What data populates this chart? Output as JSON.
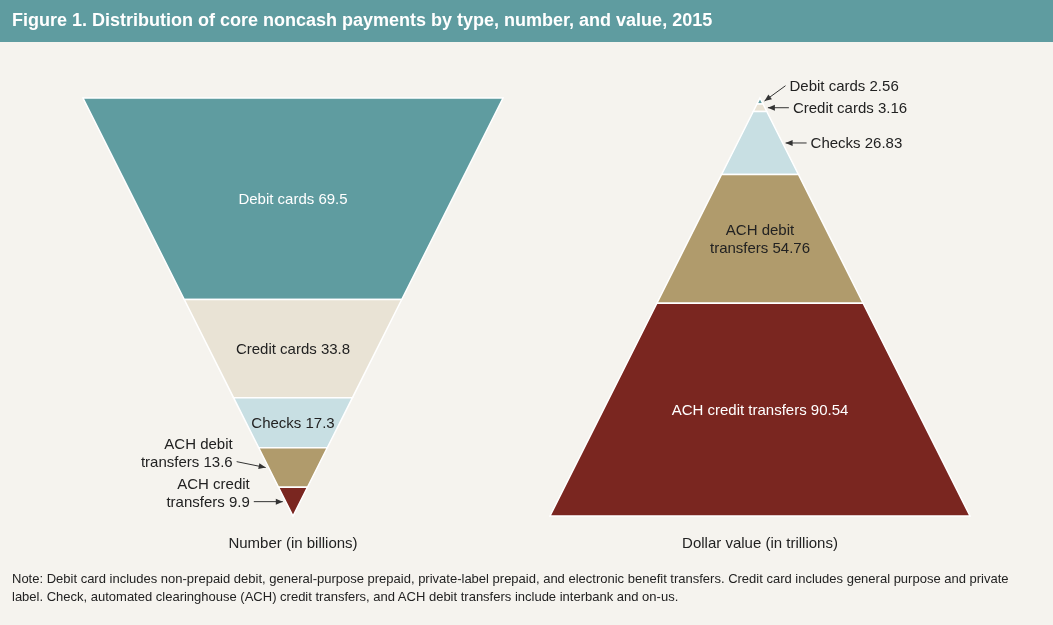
{
  "chart_data": [
    {
      "type": "other",
      "title": "Figure 1. Distribution of core noncash payments by type, number, and value, 2015",
      "xlabel": "Number (in billions)",
      "categories": [
        "Debit cards",
        "Credit cards",
        "Checks",
        "ACH debit transfers",
        "ACH credit transfers"
      ],
      "values": [
        69.5,
        33.8,
        17.3,
        13.6,
        9.9
      ],
      "colors": [
        "#5f9ca0",
        "#e9e3d5",
        "#c8dfe3",
        "#b09b6c",
        "#7a2620"
      ],
      "data_labels": true
    },
    {
      "type": "other",
      "xlabel": "Dollar value (in trillions)",
      "categories": [
        "Debit cards",
        "Credit cards",
        "Checks",
        "ACH debit transfers",
        "ACH credit transfers"
      ],
      "values": [
        2.56,
        3.16,
        26.83,
        54.76,
        90.54
      ],
      "colors": [
        "#5f9ca0",
        "#e9e3d5",
        "#c8dfe3",
        "#b09b6c",
        "#7a2620"
      ],
      "data_labels": true,
      "annotations": [
        "Note: Debit card includes non-prepaid debit, general-purpose prepaid, private-label prepaid, and electronic benefit transfers. Credit card includes general purpose and private label. Check, automated clearinghouse (ACH) credit transfers, and ACH debit transfers include interbank and on-us."
      ]
    }
  ]
}
